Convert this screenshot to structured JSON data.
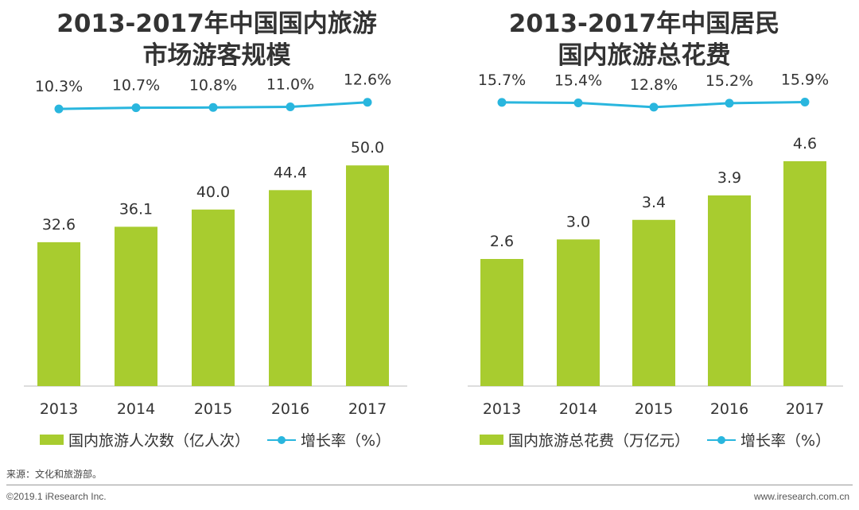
{
  "chart_data": [
    {
      "type": "bar",
      "title": "2013-2017年中国国内旅游\n市场游客规模",
      "title_lines": [
        "2013-2017年中国国内旅游",
        "市场游客规模"
      ],
      "categories": [
        "2013",
        "2014",
        "2015",
        "2016",
        "2017"
      ],
      "series": [
        {
          "name": "国内旅游人次数（亿人次）",
          "values": [
            32.6,
            36.1,
            40.0,
            44.4,
            50.0
          ],
          "labels": [
            "32.6",
            "36.1",
            "40.0",
            "44.4",
            "50.0"
          ],
          "color": "#a8cc2f"
        },
        {
          "name": "增长率（%）",
          "kind": "line",
          "values": [
            10.3,
            10.7,
            10.8,
            11.0,
            12.6
          ],
          "labels": [
            "10.3%",
            "10.7%",
            "10.8%",
            "11.0%",
            "12.6%"
          ],
          "color": "#29b6de"
        }
      ],
      "ylim": [
        0,
        72
      ],
      "line_range": [
        -18,
        15
      ]
    },
    {
      "type": "bar",
      "title": "2013-2017年中国居民\n国内旅游总花费",
      "title_lines": [
        "2013-2017年中国居民",
        "国内旅游总花费"
      ],
      "categories": [
        "2013",
        "2014",
        "2015",
        "2016",
        "2017"
      ],
      "series": [
        {
          "name": "国内旅游总花费（万亿元）",
          "values": [
            2.6,
            3.0,
            3.4,
            3.9,
            4.6
          ],
          "labels": [
            "2.6",
            "3.0",
            "3.4",
            "3.9",
            "4.6"
          ],
          "color": "#a8cc2f"
        },
        {
          "name": "增长率（%）",
          "kind": "line",
          "values": [
            15.7,
            15.4,
            12.8,
            15.2,
            15.9
          ],
          "labels": [
            "15.7%",
            "15.4%",
            "12.8%",
            "15.2%",
            "15.9%"
          ],
          "color": "#29b6de"
        }
      ],
      "ylim": [
        0,
        6.5
      ],
      "line_range": [
        -38,
        20
      ]
    }
  ],
  "source": "来源：文化和旅游部。",
  "copyright": "©2019.1 iResearch Inc.",
  "website": "www.iresearch.com.cn"
}
